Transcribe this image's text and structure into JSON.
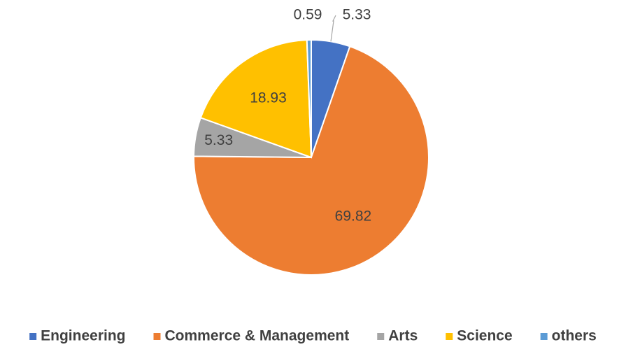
{
  "chart_data": {
    "type": "pie",
    "categories": [
      "Engineering",
      "Commerce & Management",
      "Arts",
      "Science",
      "others"
    ],
    "values": [
      5.33,
      69.82,
      5.33,
      18.93,
      0.59
    ],
    "colors": [
      "#4472c4",
      "#ed7d31",
      "#a5a5a5",
      "#ffc000",
      "#5b9bd5"
    ],
    "legend": "bottom"
  }
}
